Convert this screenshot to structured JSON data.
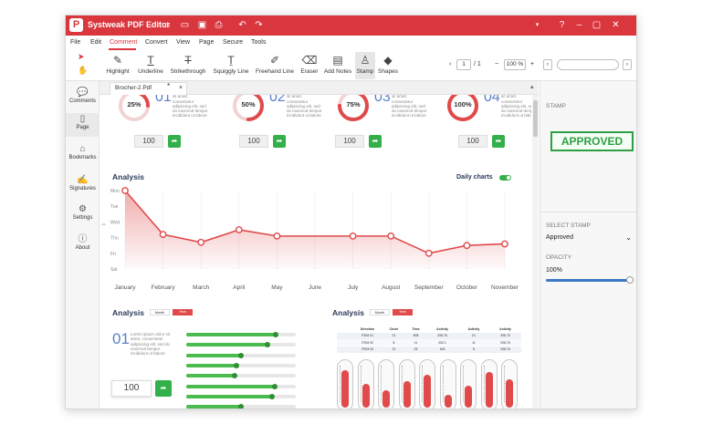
{
  "app": {
    "title": "Systweak PDF Editor"
  },
  "menu": [
    "File",
    "Edit",
    "Comment",
    "Convert",
    "View",
    "Page",
    "Secure",
    "Tools"
  ],
  "tools": [
    {
      "label": "Highlight",
      "icon": "highlight-icon"
    },
    {
      "label": "Underline",
      "icon": "underline-icon"
    },
    {
      "label": "Strikethrough",
      "icon": "strikethrough-icon"
    },
    {
      "label": "Squiggly Line",
      "icon": "squiggly-icon"
    },
    {
      "label": "Freehand Line",
      "icon": "pen-icon"
    },
    {
      "label": "Eraser",
      "icon": "eraser-icon"
    },
    {
      "label": "Add Notes",
      "icon": "note-icon"
    },
    {
      "label": "Stamp",
      "icon": "stamp-icon"
    },
    {
      "label": "Shapes",
      "icon": "shapes-icon"
    }
  ],
  "pager": {
    "current": "1",
    "total": "/ 1",
    "zoom": "100 %"
  },
  "sidebar": [
    "Comments",
    "Page",
    "Bookmarks",
    "Signatures",
    "Settings",
    "About"
  ],
  "tab": {
    "name": "Brocher-2.Pdf",
    "modified": "*",
    "close": "×"
  },
  "doc": {
    "kpis": [
      {
        "pct": "25%",
        "num": "01",
        "value": "100",
        "progress": 0.25
      },
      {
        "pct": "50%",
        "num": "02",
        "value": "100",
        "progress": 0.5
      },
      {
        "pct": "75%",
        "num": "03",
        "value": "100",
        "progress": 0.75
      },
      {
        "pct": "100%",
        "num": "04",
        "value": "100",
        "progress": 1.0
      }
    ],
    "lorem": "Lorem ipsum dolor sit amet, consectetur adipiscing elit, sed do eiusmod tempor incididunt ut labore",
    "analysis_title": "Analysis",
    "daily_charts": "Daily charts",
    "analysis2": {
      "title": "Analysis",
      "btn_month": "Month",
      "btn_year": "Year",
      "num": "01",
      "value": "100",
      "bars": [
        0.82,
        0.74,
        0.5,
        0.46,
        0.44,
        0.81,
        0.78,
        0.5
      ]
    },
    "analysis3": {
      "title": "Analysis",
      "btn_month": "Month",
      "btn_year": "Year",
      "table_headers": [
        "",
        "Direction",
        "Circle",
        "Time",
        "Activity",
        "Activity",
        "Activity"
      ],
      "table_rows": [
        [
          "",
          "ITEM 01",
          "21",
          "608",
          "208.76",
          "21",
          "208.76"
        ],
        [
          "",
          "ITEM 02",
          "8",
          "11",
          "232.1",
          "11",
          "208.76"
        ],
        [
          "",
          "ITEM 03",
          "21",
          "25",
          "165",
          "5",
          "208.76"
        ]
      ],
      "thermo": [
        0.85,
        0.55,
        0.4,
        0.6,
        0.75,
        0.3,
        0.5,
        0.82,
        0.65
      ]
    }
  },
  "chart_data": {
    "type": "line",
    "title": "Analysis",
    "categories": [
      "January",
      "February",
      "March",
      "April",
      "May",
      "June",
      "July",
      "August",
      "September",
      "October",
      "November"
    ],
    "y_categories": [
      "Mon",
      "Tue",
      "Wed",
      "Thu",
      "Fri",
      "Sat"
    ],
    "series": [
      {
        "values": [
          0.0,
          2.8,
          3.3,
          2.5,
          2.9,
          2.9,
          2.9,
          2.9,
          4.0,
          3.5,
          3.4
        ]
      }
    ],
    "color": "#e04a4a"
  },
  "right": {
    "stamp_label": "STAMP",
    "stamp_text": "APPROVED",
    "select_label": "SELECT STAMP",
    "select_value": "Approved",
    "opacity_label": "OPACITY",
    "opacity_value": "100%",
    "opacity_level": 1.0
  },
  "colors": {
    "brand": "#d9363e",
    "green": "#34b04a",
    "chart": "#e04a4a"
  }
}
